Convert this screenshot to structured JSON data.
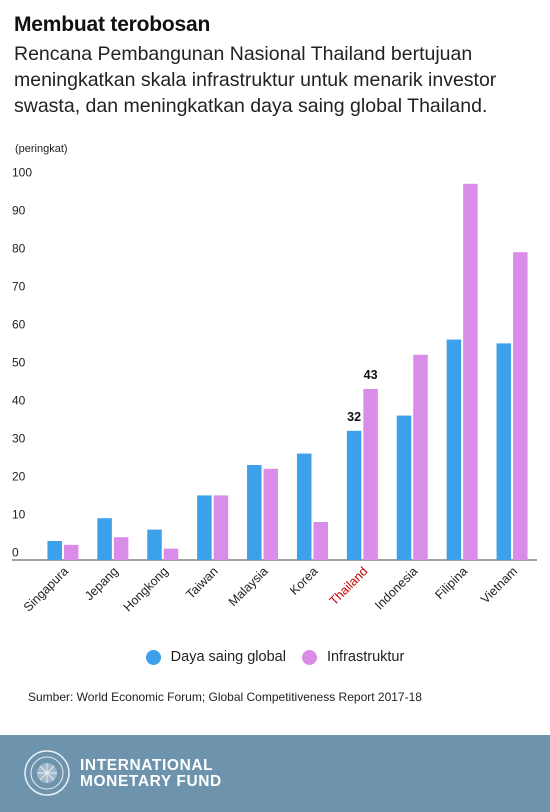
{
  "header": {
    "title": "Membuat terobosan",
    "subtitle": "Rencana Pembangunan Nasional Thailand bertujuan meningkatkan skala infrastruktur untuk menarik investor swasta, dan meningkatkan daya saing global Thailand.",
    "unit": "(peringkat)"
  },
  "chart_data": {
    "type": "bar",
    "categories": [
      "Singapura",
      "Jepang",
      "Hongkong",
      "Taiwan",
      "Malaysia",
      "Korea",
      "Thailand",
      "Indonesia",
      "Filipina",
      "Vietnam"
    ],
    "highlight_category": "Thailand",
    "highlight_color": "#c00000",
    "series": [
      {
        "name": "Daya saing global",
        "color": "#3ca0ea",
        "values": [
          3,
          9,
          6,
          15,
          23,
          26,
          32,
          36,
          56,
          55
        ]
      },
      {
        "name": "Infrastruktur",
        "color": "#d98ce8",
        "values": [
          2,
          4,
          1,
          15,
          22,
          8,
          43,
          52,
          97,
          79
        ]
      }
    ],
    "data_labels": [
      {
        "series": 0,
        "category": "Thailand",
        "text": "32"
      },
      {
        "series": 1,
        "category": "Thailand",
        "text": "43"
      }
    ],
    "yticks": [
      0,
      10,
      20,
      30,
      40,
      50,
      60,
      70,
      80,
      90,
      100
    ],
    "ylim": [
      -2,
      100
    ],
    "grid": false,
    "legend_position": "bottom"
  },
  "legend": {
    "series1": "Daya saing global",
    "series2": "Infrastruktur",
    "color1": "#3ca0ea",
    "color2": "#d98ce8"
  },
  "source": "Sumber: World Economic Forum; Global Competitiveness Report 2017-18",
  "footer": {
    "org_line1": "INTERNATIONAL",
    "org_line2": "MONETARY FUND",
    "bg_color": "#6e93ad"
  }
}
